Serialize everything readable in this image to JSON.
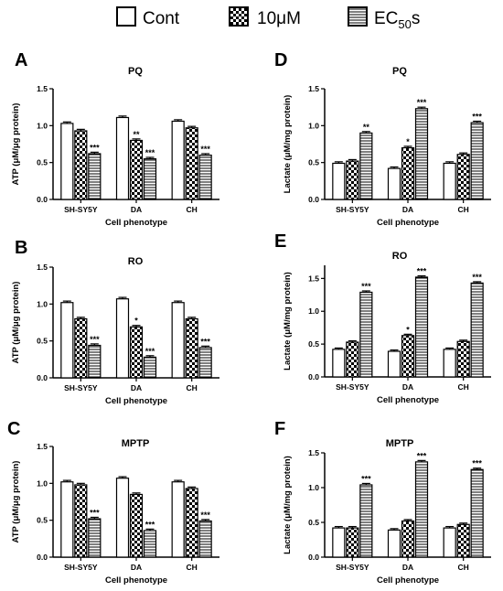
{
  "legend": [
    {
      "label_main": "Cont",
      "label_sub": "",
      "label_tail": "",
      "pattern": "white"
    },
    {
      "label_main": "10μM",
      "label_sub": "",
      "label_tail": "",
      "pattern": "checker"
    },
    {
      "label_main": "EC",
      "label_sub": "50",
      "label_tail": "s",
      "pattern": "hlines"
    }
  ],
  "chart_data": [
    {
      "panel": "A",
      "title": "PQ",
      "type": "bar",
      "xlabel": "Cell phenotype",
      "ylabel": "ATP (μM/μg protein)",
      "ylim": [
        0,
        1.5
      ],
      "yticks": [
        "0.0",
        "0.5",
        "1.0",
        "1.5"
      ],
      "categories": [
        "SH-SY5Y",
        "DA",
        "CH"
      ],
      "series": [
        {
          "name": "Cont",
          "values": [
            1.03,
            1.11,
            1.06
          ],
          "sig": [
            "",
            "",
            ""
          ]
        },
        {
          "name": "10μM",
          "values": [
            0.93,
            0.8,
            0.97
          ],
          "sig": [
            "",
            "**",
            ""
          ]
        },
        {
          "name": "EC50s",
          "values": [
            0.62,
            0.55,
            0.6
          ],
          "sig": [
            "***",
            "***",
            "***"
          ]
        }
      ]
    },
    {
      "panel": "B",
      "title": "RO",
      "type": "bar",
      "xlabel": "Cell phenotype",
      "ylabel": "ATP (μM/μg protein)",
      "ylim": [
        0,
        1.5
      ],
      "yticks": [
        "0.0",
        "0.5",
        "1.0",
        "1.5"
      ],
      "categories": [
        "SH-SY5Y",
        "DA",
        "CH"
      ],
      "series": [
        {
          "name": "Cont",
          "values": [
            1.02,
            1.07,
            1.02
          ],
          "sig": [
            "",
            "",
            ""
          ]
        },
        {
          "name": "10μM",
          "values": [
            0.8,
            0.69,
            0.8
          ],
          "sig": [
            "",
            "*",
            ""
          ]
        },
        {
          "name": "EC50s",
          "values": [
            0.44,
            0.28,
            0.41
          ],
          "sig": [
            "***",
            "***",
            "***"
          ]
        }
      ]
    },
    {
      "panel": "C",
      "title": "MPTP",
      "type": "bar",
      "xlabel": "Cell phenotype",
      "ylabel": "ATP (μM/μg protein)",
      "ylim": [
        0,
        1.5
      ],
      "yticks": [
        "0.0",
        "0.5",
        "1.0",
        "1.5"
      ],
      "categories": [
        "SH-SY5Y",
        "DA",
        "CH"
      ],
      "series": [
        {
          "name": "Cont",
          "values": [
            1.02,
            1.07,
            1.02
          ],
          "sig": [
            "",
            "",
            ""
          ]
        },
        {
          "name": "10μM",
          "values": [
            0.98,
            0.85,
            0.93
          ],
          "sig": [
            "",
            "",
            ""
          ]
        },
        {
          "name": "EC50s",
          "values": [
            0.52,
            0.36,
            0.49
          ],
          "sig": [
            "***",
            "***",
            "***"
          ]
        }
      ]
    },
    {
      "panel": "D",
      "title": "PQ",
      "type": "bar",
      "xlabel": "Cell phenotype",
      "ylabel": "Lactate (μM/mg protein)",
      "ylim": [
        0,
        1.5
      ],
      "yticks": [
        "0.0",
        "0.5",
        "1.0",
        "1.5"
      ],
      "categories": [
        "SH-SY5Y",
        "DA",
        "CH"
      ],
      "series": [
        {
          "name": "Cont",
          "values": [
            0.49,
            0.42,
            0.49
          ],
          "sig": [
            "",
            "",
            ""
          ]
        },
        {
          "name": "10μM",
          "values": [
            0.52,
            0.7,
            0.61
          ],
          "sig": [
            "",
            "*",
            ""
          ]
        },
        {
          "name": "EC50s",
          "values": [
            0.9,
            1.23,
            1.04
          ],
          "sig": [
            "**",
            "***",
            "***"
          ]
        }
      ]
    },
    {
      "panel": "E",
      "title": "RO",
      "type": "bar",
      "xlabel": "Cell phenotype",
      "ylabel": "Lactate (μM/mg protein)",
      "ylim": [
        0,
        1.7
      ],
      "yticks": [
        "0.0",
        "0.5",
        "1.0",
        "1.5"
      ],
      "categories": [
        "SH-SY5Y",
        "DA",
        "CH"
      ],
      "series": [
        {
          "name": "Cont",
          "values": [
            0.42,
            0.39,
            0.42
          ],
          "sig": [
            "",
            "",
            ""
          ]
        },
        {
          "name": "10μM",
          "values": [
            0.53,
            0.63,
            0.54
          ],
          "sig": [
            "",
            "*",
            ""
          ]
        },
        {
          "name": "EC50s",
          "values": [
            1.29,
            1.52,
            1.43
          ],
          "sig": [
            "***",
            "***",
            "***"
          ]
        }
      ]
    },
    {
      "panel": "F",
      "title": "MPTP",
      "type": "bar",
      "xlabel": "Cell phenotype",
      "ylabel": "Lactate (μM/mg protein)",
      "ylim": [
        0,
        1.5
      ],
      "yticks": [
        "0.0",
        "0.5",
        "1.0",
        "1.5"
      ],
      "categories": [
        "SH-SY5Y",
        "DA",
        "CH"
      ],
      "series": [
        {
          "name": "Cont",
          "values": [
            0.42,
            0.39,
            0.42
          ],
          "sig": [
            "",
            "",
            ""
          ]
        },
        {
          "name": "10μM",
          "values": [
            0.42,
            0.52,
            0.47
          ],
          "sig": [
            "",
            "",
            ""
          ]
        },
        {
          "name": "EC50s",
          "values": [
            1.04,
            1.37,
            1.26
          ],
          "sig": [
            "***",
            "***",
            "***"
          ]
        }
      ]
    }
  ]
}
